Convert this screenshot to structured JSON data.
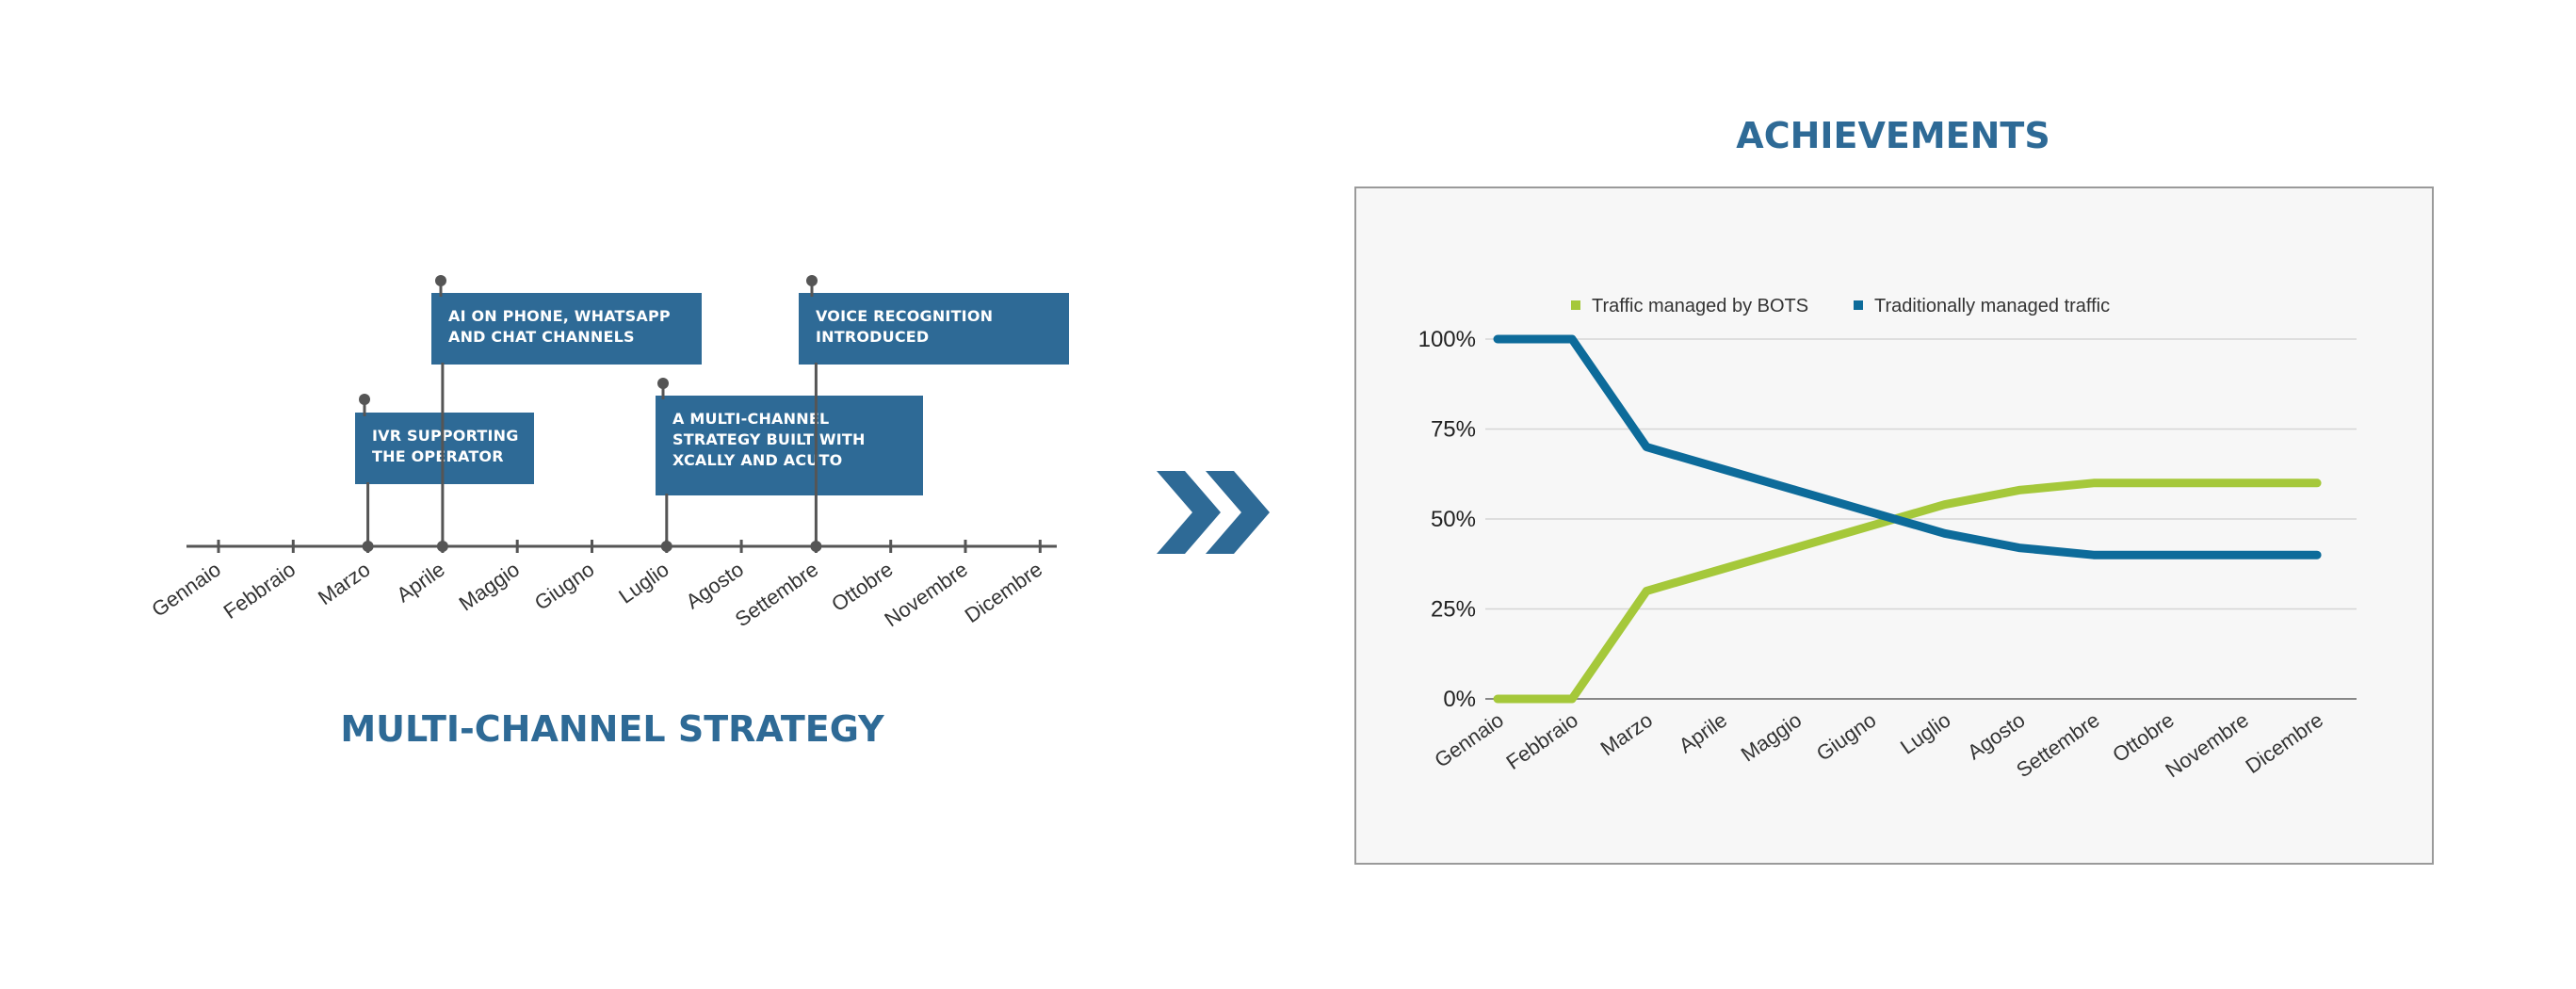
{
  "timeline": {
    "title": "MULTI-CHANNEL STRATEGY",
    "months": [
      "Gennaio",
      "Febbraio",
      "Marzo",
      "Aprile",
      "Maggio",
      "Giugno",
      "Luglio",
      "Agosto",
      "Settembre",
      "Ottobre",
      "Novembre",
      "Dicembre"
    ],
    "events": [
      {
        "month": "Marzo",
        "text": "IVR SUPPORTING\nTHE OPERATOR"
      },
      {
        "month": "Aprile",
        "text": "AI ON PHONE, WHATSAPP\nAND CHAT CHANNELS"
      },
      {
        "month": "Luglio",
        "text": "A MULTI-CHANNEL\nSTRATEGY BUILT WITH\nXCALLY AND ACUTO"
      },
      {
        "month": "Settembre",
        "text": "VOICE RECOGNITION\nINTRODUCED"
      }
    ],
    "colors": {
      "box": "#2e6a96",
      "axis": "#555555"
    }
  },
  "arrow_icon": "double-chevron-right-icon",
  "chart_data": {
    "type": "line",
    "title": "ACHIEVEMENTS",
    "categories": [
      "Gennaio",
      "Febbraio",
      "Marzo",
      "Aprile",
      "Maggio",
      "Giugno",
      "Luglio",
      "Agosto",
      "Settembre",
      "Ottobre",
      "Novembre",
      "Dicembre"
    ],
    "series": [
      {
        "name": "Traffic managed by BOTS",
        "color": "#a5c83a",
        "values": [
          0,
          0,
          30,
          36,
          42,
          48,
          54,
          58,
          60,
          60,
          60,
          60
        ]
      },
      {
        "name": "Traditionally managed traffic",
        "color": "#0d6b9a",
        "values": [
          100,
          100,
          70,
          64,
          58,
          52,
          46,
          42,
          40,
          40,
          40,
          40
        ]
      }
    ],
    "yticks": [
      "0%",
      "25%",
      "50%",
      "75%",
      "100%"
    ],
    "ylim": [
      0,
      100
    ],
    "grid": true,
    "legend": "top"
  }
}
